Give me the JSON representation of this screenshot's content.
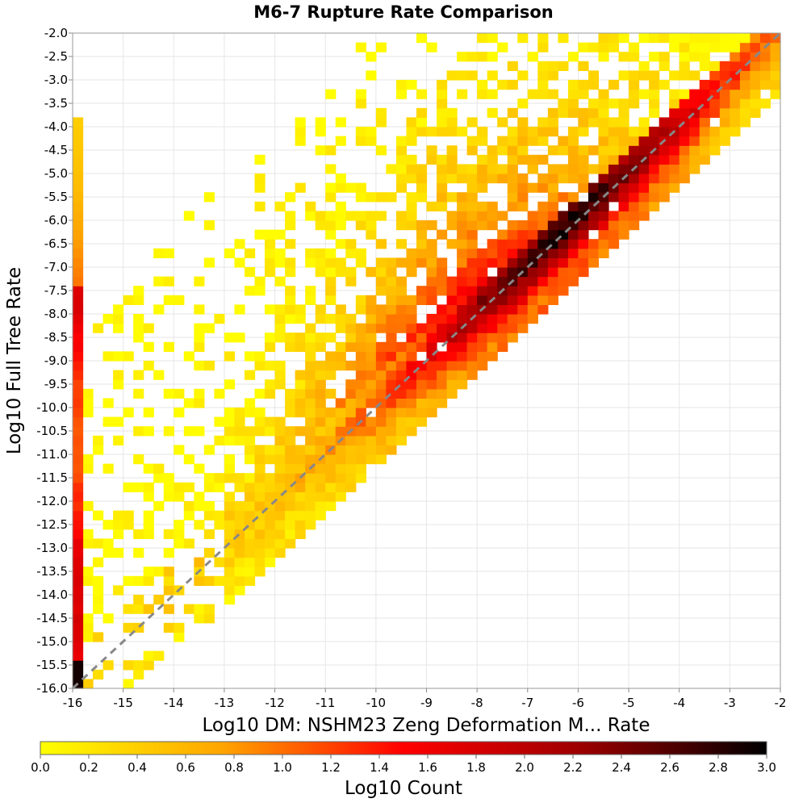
{
  "chart_data": {
    "type": "heatmap",
    "title": "M6-7 Rupture Rate Comparison",
    "xlabel": "Log10 DM: NSHM23 Zeng Deformation M... Rate",
    "ylabel": "Log10 Full Tree Rate",
    "xlim": [
      -16,
      -2
    ],
    "ylim": [
      -16,
      -2
    ],
    "x_ticks": [
      "-16",
      "-15",
      "-14",
      "-13",
      "-12",
      "-11",
      "-10",
      "-9",
      "-8",
      "-7",
      "-6",
      "-5",
      "-4",
      "-3",
      "-2"
    ],
    "y_ticks": [
      "-2.0",
      "-2.5",
      "-3.0",
      "-3.5",
      "-4.0",
      "-4.5",
      "-5.0",
      "-5.5",
      "-6.0",
      "-6.5",
      "-7.0",
      "-7.5",
      "-8.0",
      "-8.5",
      "-9.0",
      "-9.5",
      "-10.0",
      "-10.5",
      "-11.0",
      "-11.5",
      "-12.0",
      "-12.5",
      "-13.0",
      "-13.5",
      "-14.0",
      "-14.5",
      "-15.0",
      "-15.5",
      "-16.0"
    ],
    "grid": true,
    "bin_width": 0.2,
    "reference_line": {
      "from": [
        -16,
        -16
      ],
      "to": [
        -2,
        -2
      ],
      "style": "dashed",
      "color": "#888888"
    },
    "colorbar": {
      "label": "Log10 Count",
      "range": [
        0.0,
        3.0
      ],
      "ticks": [
        "0.0",
        "0.2",
        "0.4",
        "0.6",
        "0.8",
        "1.0",
        "1.2",
        "1.4",
        "1.6",
        "1.8",
        "2.0",
        "2.2",
        "2.4",
        "2.6",
        "2.8",
        "3.0"
      ],
      "colors": [
        "#ffff00",
        "#ffa500",
        "#ff0000",
        "#990000",
        "#000000"
      ]
    },
    "description_of_distribution": "dense ridge along y=x from about -11 to -2; broad fan of low counts above the diagonal; a column at x=-16 for y from -16 to -4"
  }
}
